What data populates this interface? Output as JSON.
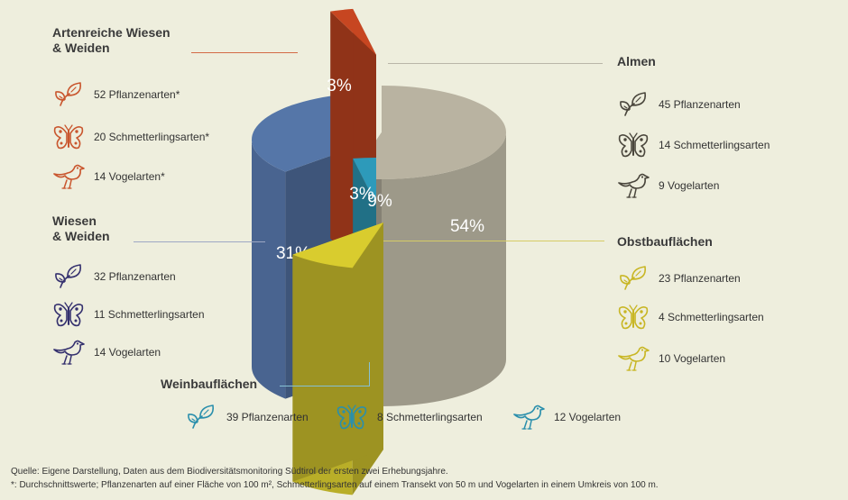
{
  "chart_data": {
    "type": "pie",
    "style": "3d-exploded-cylinder",
    "categories": [
      "Almen",
      "Wiesen & Weiden",
      "Obstbauflächen",
      "Artenreiche Wiesen & Weiden",
      "Weinbauflächen"
    ],
    "values": [
      54,
      31,
      9,
      3,
      3
    ],
    "labels": [
      "54%",
      "31%",
      "9%",
      "3%",
      "3%"
    ],
    "colors": [
      "#aba695",
      "#4f6d9c",
      "#c9bd2b",
      "#b8411f",
      "#2a8fac"
    ]
  },
  "categories": {
    "artenreiche": {
      "title_line1": "Artenreiche Wiesen",
      "title_line2": "& Weiden",
      "color": "#c9562e",
      "plants": "52 Pflanzenarten*",
      "butterflies": "20 Schmetterlingsarten*",
      "birds": "14 Vogelarten*"
    },
    "wiesen": {
      "title_line1": "Wiesen",
      "title_line2": "& Weiden",
      "color": "#34306e",
      "plants": "32 Pflanzenarten",
      "butterflies": "11 Schmetterlingsarten",
      "birds": "14 Vogelarten"
    },
    "almen": {
      "title": "Almen",
      "color": "#4a463c",
      "plants": "45 Pflanzenarten",
      "butterflies": "14 Schmetterlingsarten",
      "birds": "9 Vogelarten"
    },
    "obstbau": {
      "title": "Obstbauflächen",
      "color": "#c8b624",
      "plants": "23 Pflanzenarten",
      "butterflies": "4 Schmetterlingsarten",
      "birds": "10 Vogelarten"
    },
    "weinbau": {
      "title": "Weinbauflächen",
      "color": "#2a8fac",
      "plants": "39 Pflanzenarten",
      "butterflies": "8 Schmetterlingsarten",
      "birds": "12 Vogelarten"
    }
  },
  "footer": {
    "source": "Quelle: Eigene Darstellung, Daten aus dem Biodiversitätsmonitoring Südtirol der ersten zwei Erhebungsjahre.",
    "note": "*: Durchschnittswerte; Pflanzenarten auf einer Fläche von 100 m², Schmetterlingsarten auf einem Transekt von 50 m und Vogelarten in einem Umkreis von 100 m."
  }
}
